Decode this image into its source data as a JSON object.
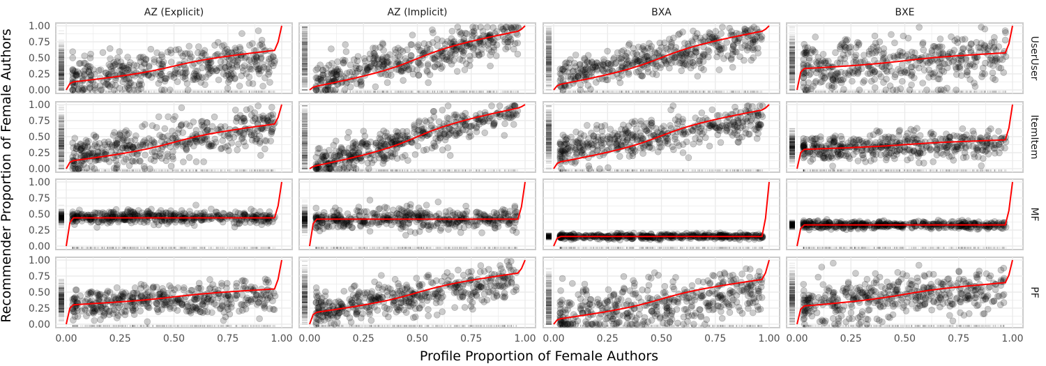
{
  "chart_data": {
    "type": "scatter",
    "title": "",
    "xlabel": "Profile Proportion of Female Authors",
    "ylabel": "Recommender Proportion of Female Authors",
    "xlim": [
      0,
      1
    ],
    "ylim": [
      0,
      1
    ],
    "x_ticks": [
      "0.00",
      "0.25",
      "0.50",
      "0.75",
      "1.00"
    ],
    "y_ticks": [
      "0.00",
      "0.25",
      "0.50",
      "0.75",
      "1.00"
    ],
    "grid": true,
    "facet_columns": [
      "AZ (Explicit)",
      "AZ (Implicit)",
      "BXA",
      "BXE"
    ],
    "facet_rows": [
      "UserUser",
      "ItemItem",
      "MF",
      "PF"
    ],
    "point_color": "#000000",
    "point_alpha": 0.2,
    "trend_color": "#ff0000",
    "panels": [
      {
        "row": "UserUser",
        "col": "AZ (Explicit)",
        "intercept": 0.15,
        "slope": 0.35,
        "spread": 0.16,
        "trend_start": 0.12,
        "trend_end": 0.62
      },
      {
        "row": "UserUser",
        "col": "AZ (Implicit)",
        "intercept": 0.1,
        "slope": 0.8,
        "spread": 0.15,
        "trend_start": 0.05,
        "trend_end": 0.92
      },
      {
        "row": "UserUser",
        "col": "BXA",
        "intercept": 0.18,
        "slope": 0.65,
        "spread": 0.14,
        "trend_start": 0.08,
        "trend_end": 0.92
      },
      {
        "row": "UserUser",
        "col": "BXE",
        "intercept": 0.35,
        "slope": 0.15,
        "spread": 0.2,
        "trend_start": 0.33,
        "trend_end": 0.58
      },
      {
        "row": "ItemItem",
        "col": "AZ (Explicit)",
        "intercept": 0.15,
        "slope": 0.5,
        "spread": 0.17,
        "trend_start": 0.12,
        "trend_end": 0.7
      },
      {
        "row": "ItemItem",
        "col": "AZ (Implicit)",
        "intercept": 0.05,
        "slope": 0.9,
        "spread": 0.13,
        "trend_start": 0.04,
        "trend_end": 0.95
      },
      {
        "row": "ItemItem",
        "col": "BXA",
        "intercept": 0.25,
        "slope": 0.55,
        "spread": 0.14,
        "trend_start": 0.1,
        "trend_end": 0.92
      },
      {
        "row": "ItemItem",
        "col": "BXE",
        "intercept": 0.3,
        "slope": 0.1,
        "spread": 0.11,
        "trend_start": 0.3,
        "trend_end": 0.45
      },
      {
        "row": "MF",
        "col": "AZ (Explicit)",
        "intercept": 0.45,
        "slope": 0.0,
        "spread": 0.05,
        "trend_start": 0.44,
        "trend_end": 0.44
      },
      {
        "row": "MF",
        "col": "AZ (Implicit)",
        "intercept": 0.42,
        "slope": 0.0,
        "spread": 0.09,
        "trend_start": 0.42,
        "trend_end": 0.42
      },
      {
        "row": "MF",
        "col": "BXA",
        "intercept": 0.15,
        "slope": 0.0,
        "spread": 0.02,
        "trend_start": 0.15,
        "trend_end": 0.15
      },
      {
        "row": "MF",
        "col": "BXE",
        "intercept": 0.33,
        "slope": 0.0,
        "spread": 0.03,
        "trend_start": 0.33,
        "trend_end": 0.33
      },
      {
        "row": "PF",
        "col": "AZ (Explicit)",
        "intercept": 0.3,
        "slope": 0.15,
        "spread": 0.12,
        "trend_start": 0.3,
        "trend_end": 0.55
      },
      {
        "row": "PF",
        "col": "AZ (Implicit)",
        "intercept": 0.22,
        "slope": 0.45,
        "spread": 0.14,
        "trend_start": 0.18,
        "trend_end": 0.8
      },
      {
        "row": "PF",
        "col": "BXA",
        "intercept": 0.1,
        "slope": 0.45,
        "spread": 0.2,
        "trend_start": 0.08,
        "trend_end": 0.7
      },
      {
        "row": "PF",
        "col": "BXE",
        "intercept": 0.3,
        "slope": 0.25,
        "spread": 0.17,
        "trend_start": 0.28,
        "trend_end": 0.65
      }
    ]
  }
}
